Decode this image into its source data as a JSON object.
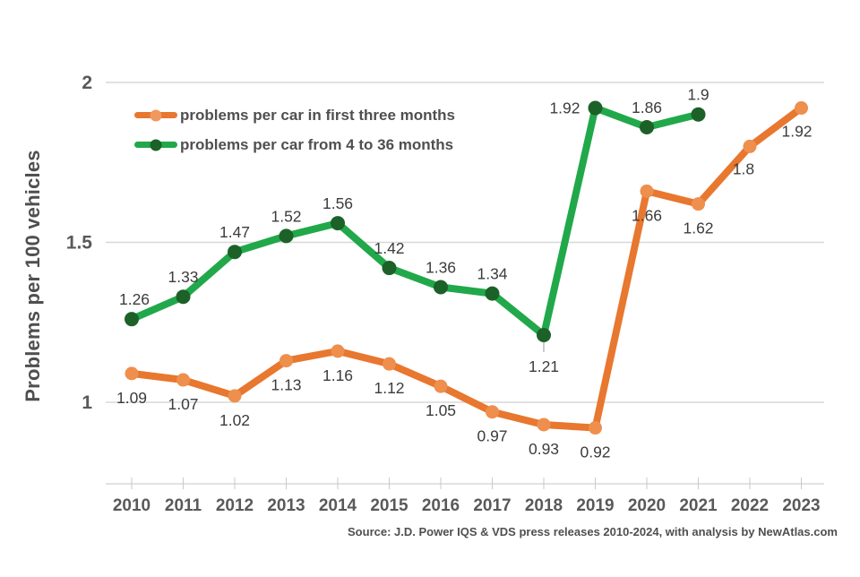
{
  "chart_data": {
    "type": "line",
    "x": [
      "2010",
      "2011",
      "2012",
      "2013",
      "2014",
      "2015",
      "2016",
      "2017",
      "2018",
      "2019",
      "2020",
      "2021",
      "2022",
      "2023"
    ],
    "series": [
      {
        "name": "problems per car in first three months",
        "color": "#E8772F",
        "marker_color": "#EE8F4D",
        "values": [
          1.09,
          1.07,
          1.02,
          1.13,
          1.16,
          1.12,
          1.05,
          0.97,
          0.93,
          0.92,
          1.66,
          1.62,
          1.8,
          1.92
        ],
        "labels": [
          "1.09",
          "1.07",
          "1.02",
          "1.13",
          "1.16",
          "1.12",
          "1.05",
          "0.97",
          "0.93",
          "0.92",
          "1.66",
          "1.62",
          "1.8",
          "1.92"
        ]
      },
      {
        "name": "problems per car from 4 to 36 months",
        "color": "#21A84A",
        "marker_color": "#1C6128",
        "values": [
          1.26,
          1.33,
          1.47,
          1.52,
          1.56,
          1.42,
          1.36,
          1.34,
          1.21,
          1.92,
          1.86,
          1.9,
          null,
          null
        ],
        "labels": [
          "1.26",
          "1.33",
          "1.47",
          "1.52",
          "1.56",
          "1.42",
          "1.36",
          "1.34",
          "1.21",
          "1.92",
          "1.86",
          "1.9",
          null,
          null
        ]
      }
    ],
    "ylabel": "Problems per 100 vehicles",
    "xlabel": "",
    "yticks": [
      {
        "value": 2,
        "label": "2"
      },
      {
        "value": 1.5,
        "label": "1.5"
      },
      {
        "value": 1,
        "label": "1"
      }
    ],
    "ylim": [
      0.75,
      2.0
    ],
    "grid": "horizontal",
    "legend_position": "top-left",
    "source": "Source: J.D. Power IQS & VDS press releases 2010-2024, with analysis by NewAtlas.com",
    "colors": {
      "grid": "#D8D8D8",
      "axis": "#D8D8D8",
      "tick": "#C9C9C9",
      "data_label_text": "#3C3C3C",
      "axis_text": "#595959",
      "heading_text": "#4F4F4F"
    }
  }
}
